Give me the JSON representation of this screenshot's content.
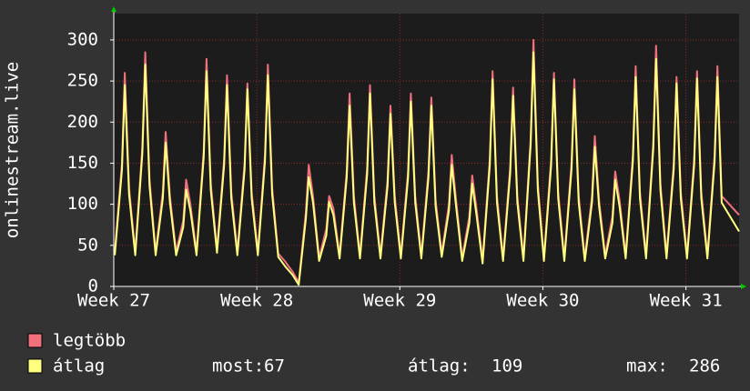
{
  "chart_data": {
    "type": "line",
    "y_label": "onlinestream.live",
    "x": [
      0.05,
      0.4,
      0.54,
      0.75,
      1.05,
      1.4,
      1.54,
      1.75,
      2.05,
      2.4,
      2.54,
      2.75,
      3.05,
      3.4,
      3.54,
      3.75,
      4.05,
      4.4,
      4.54,
      4.75,
      5.05,
      5.4,
      5.54,
      5.75,
      6.05,
      6.4,
      6.54,
      6.75,
      7.05,
      7.4,
      7.54,
      7.75,
      8.05,
      8.4,
      8.54,
      8.75,
      9.05,
      9.4,
      9.54,
      9.75,
      10.05,
      10.4,
      10.54,
      10.75,
      11.05,
      11.4,
      11.54,
      11.75,
      12.05,
      12.4,
      12.54,
      12.75,
      13.05,
      13.4,
      13.54,
      13.75,
      14.05,
      14.4,
      14.54,
      14.75,
      15.05,
      15.4,
      15.54,
      15.75,
      16.05,
      16.4,
      16.54,
      16.75,
      17.05,
      17.4,
      17.54,
      17.75,
      18.05,
      18.4,
      18.54,
      18.75,
      19.05,
      19.4,
      19.54,
      19.75,
      20.05,
      20.4,
      20.54,
      20.75,
      21.05,
      21.4,
      21.54,
      21.75,
      22.05,
      22.4,
      22.54,
      22.75,
      23.05,
      23.4,
      23.54,
      23.75,
      24.05,
      24.4,
      24.54,
      24.75,
      25.05,
      25.4,
      25.54,
      25.75,
      26.05,
      26.4,
      26.54,
      26.75,
      27.05,
      27.4,
      27.54,
      27.75,
      28.05,
      28.4,
      28.54,
      28.75,
      29.05,
      29.4,
      29.54,
      29.75,
      30.6
    ],
    "series": [
      {
        "name": "legtöbb",
        "color": "#f0707c",
        "values": [
          42,
          150,
          260,
          120,
          42,
          170,
          285,
          130,
          42,
          115,
          188,
          110,
          42,
          80,
          130,
          100,
          42,
          165,
          277,
          125,
          45,
          155,
          257,
          115,
          42,
          150,
          247,
          115,
          42,
          160,
          270,
          120,
          40,
          30,
          25,
          18,
          5,
          90,
          148,
          110,
          35,
          70,
          110,
          95,
          38,
          140,
          235,
          110,
          38,
          145,
          245,
          110,
          38,
          130,
          220,
          110,
          38,
          140,
          235,
          110,
          38,
          140,
          230,
          105,
          40,
          100,
          160,
          105,
          35,
          85,
          135,
          95,
          32,
          155,
          262,
          110,
          35,
          145,
          242,
          110,
          35,
          180,
          300,
          125,
          35,
          155,
          260,
          115,
          35,
          150,
          252,
          110,
          35,
          110,
          183,
          105,
          38,
          85,
          140,
          105,
          38,
          160,
          268,
          115,
          38,
          175,
          293,
          125,
          38,
          150,
          255,
          115,
          38,
          155,
          262,
          115,
          38,
          160,
          268,
          110,
          87
        ]
      },
      {
        "name": "átlag",
        "color": "#ffff80",
        "values": [
          38,
          142,
          245,
          112,
          38,
          162,
          270,
          122,
          38,
          107,
          175,
          102,
          38,
          72,
          118,
          92,
          38,
          157,
          262,
          117,
          41,
          147,
          245,
          107,
          38,
          142,
          240,
          107,
          38,
          152,
          257,
          112,
          36,
          24,
          20,
          14,
          2,
          82,
          133,
          102,
          31,
          62,
          103,
          87,
          34,
          132,
          220,
          102,
          34,
          137,
          235,
          102,
          34,
          122,
          210,
          102,
          34,
          132,
          225,
          102,
          34,
          132,
          220,
          97,
          36,
          92,
          148,
          97,
          31,
          77,
          125,
          87,
          28,
          147,
          252,
          102,
          31,
          137,
          232,
          102,
          31,
          172,
          285,
          117,
          31,
          147,
          252,
          107,
          31,
          142,
          240,
          102,
          31,
          102,
          170,
          97,
          34,
          77,
          130,
          97,
          34,
          152,
          255,
          107,
          34,
          167,
          277,
          117,
          34,
          142,
          247,
          107,
          34,
          147,
          253,
          107,
          34,
          152,
          255,
          102,
          67
        ]
      }
    ],
    "xlim": [
      0,
      30.6
    ],
    "xticks": [
      {
        "value": 0,
        "label": "Week 27"
      },
      {
        "value": 7,
        "label": "Week 28"
      },
      {
        "value": 14,
        "label": "Week 29"
      },
      {
        "value": 21,
        "label": "Week 30"
      },
      {
        "value": 28,
        "label": "Week 31"
      }
    ],
    "ylim": [
      0,
      332
    ],
    "yticks": [
      0,
      50,
      100,
      150,
      200,
      250,
      300
    ],
    "grid": true,
    "stats": [
      {
        "label": "most:",
        "value": 67
      },
      {
        "label": "átlag:",
        "value": 109
      },
      {
        "label": "max:",
        "value": 286
      }
    ]
  }
}
